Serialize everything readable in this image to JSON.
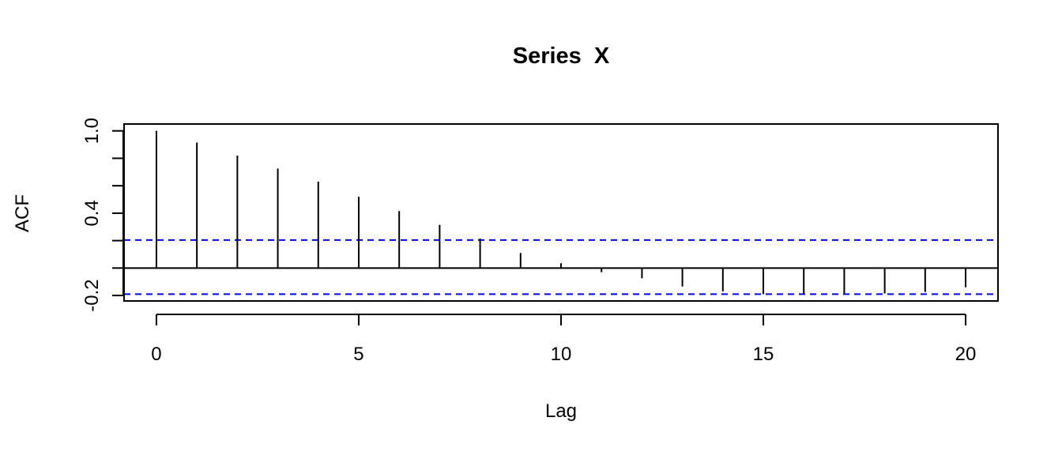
{
  "chart_data": {
    "type": "bar",
    "title": "Series  X",
    "xlabel": "Lag",
    "ylabel": "ACF",
    "x": [
      0,
      1,
      2,
      3,
      4,
      5,
      6,
      7,
      8,
      9,
      10,
      11,
      12,
      13,
      14,
      15,
      16,
      17,
      18,
      19,
      20
    ],
    "values": [
      1.0,
      0.915,
      0.82,
      0.725,
      0.63,
      0.52,
      0.415,
      0.315,
      0.215,
      0.11,
      0.035,
      -0.03,
      -0.075,
      -0.135,
      -0.17,
      -0.19,
      -0.19,
      -0.185,
      -0.185,
      -0.175,
      -0.14
    ],
    "ci": [
      0.204,
      -0.19
    ],
    "xlim": [
      -0.8,
      20.8
    ],
    "ylim": [
      -0.24,
      1.05
    ],
    "xticks": [
      0,
      5,
      10,
      15,
      20
    ],
    "xtick_labels": [
      "0",
      "5",
      "10",
      "15",
      "20"
    ],
    "yticks": [
      -0.2,
      0.0,
      0.2,
      0.4,
      0.6,
      0.8,
      1.0
    ],
    "ytick_labels": [
      "-0.2",
      "",
      "",
      "0.4",
      "",
      "",
      "1.0"
    ],
    "grid": false,
    "colors": {
      "bars": "#000000",
      "ci": "#0000ff",
      "zero": "#000000"
    }
  }
}
